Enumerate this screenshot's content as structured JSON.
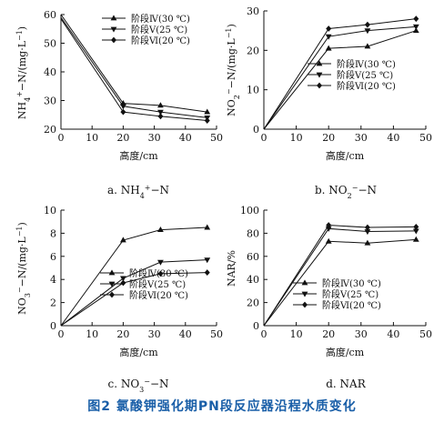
{
  "figure_caption": "图2  氯酸钾强化期PN段反应器沿程水质变化",
  "chart_data": [
    {
      "type": "line",
      "subplot_label": "a. NH4+−N",
      "xlabel": "高度/cm",
      "ylabel": "NH4+−N/(mg·L−1)",
      "xlim": [
        0,
        50
      ],
      "ylim": [
        20,
        60
      ],
      "xticks": [
        0,
        10,
        20,
        30,
        40,
        50
      ],
      "yticks": [
        20,
        30,
        40,
        50,
        60
      ],
      "legend_position": "top-right",
      "x": [
        0,
        20,
        32,
        47
      ],
      "series": [
        {
          "name": "阶段Ⅳ(30 ℃)",
          "marker": "triangle-up",
          "values": [
            60,
            29,
            28.3,
            26
          ]
        },
        {
          "name": "阶段Ⅴ(25 ℃)",
          "marker": "triangle-down",
          "values": [
            59,
            28,
            26,
            24
          ]
        },
        {
          "name": "阶段Ⅵ(20 ℃)",
          "marker": "diamond",
          "values": [
            58.5,
            26,
            24.5,
            23
          ]
        }
      ]
    },
    {
      "type": "line",
      "subplot_label": "b. NO2−−N",
      "xlabel": "高度/cm",
      "ylabel": "NO2−−N/(mg·L−1)",
      "xlim": [
        0,
        50
      ],
      "ylim": [
        0,
        30
      ],
      "xticks": [
        0,
        10,
        20,
        30,
        40,
        50
      ],
      "yticks": [
        0,
        10,
        20,
        30
      ],
      "legend_position": "bottom-right",
      "x": [
        0,
        20,
        32,
        47
      ],
      "series": [
        {
          "name": "阶段Ⅳ(30 ℃)",
          "marker": "triangle-up",
          "values": [
            0,
            20.5,
            21,
            25
          ]
        },
        {
          "name": "阶段Ⅴ(25 ℃)",
          "marker": "triangle-down",
          "values": [
            0,
            23.5,
            25,
            26
          ]
        },
        {
          "name": "阶段Ⅵ(20 ℃)",
          "marker": "diamond",
          "values": [
            0,
            25.5,
            26.5,
            28
          ]
        }
      ]
    },
    {
      "type": "line",
      "subplot_label": "c. NO3−−N",
      "xlabel": "高度/cm",
      "ylabel": "NO3−−N/(mg·L−1)",
      "xlim": [
        0,
        50
      ],
      "ylim": [
        0,
        10
      ],
      "xticks": [
        0,
        10,
        20,
        30,
        40,
        50
      ],
      "yticks": [
        0,
        2,
        4,
        6,
        8,
        10
      ],
      "legend_position": "bottom-right",
      "x": [
        0,
        20,
        32,
        47
      ],
      "series": [
        {
          "name": "阶段Ⅳ(30 ℃)",
          "marker": "triangle-up",
          "values": [
            0,
            7.4,
            8.3,
            8.5
          ]
        },
        {
          "name": "阶段Ⅴ(25 ℃)",
          "marker": "triangle-down",
          "values": [
            0,
            4.1,
            5.5,
            5.7
          ]
        },
        {
          "name": "阶段Ⅵ(20 ℃)",
          "marker": "diamond",
          "values": [
            0,
            3.7,
            4.5,
            4.6
          ]
        }
      ]
    },
    {
      "type": "line",
      "subplot_label": "d. NAR",
      "xlabel": "高度/cm",
      "ylabel": "NAR/%",
      "xlim": [
        0,
        50
      ],
      "ylim": [
        0,
        100
      ],
      "xticks": [
        0,
        10,
        20,
        30,
        40,
        50
      ],
      "yticks": [
        0,
        20,
        40,
        60,
        80,
        100
      ],
      "legend_position": "bottom-right",
      "x": [
        0,
        20,
        32,
        47
      ],
      "series": [
        {
          "name": "阶段Ⅳ(30 ℃)",
          "marker": "triangle-up",
          "values": [
            0,
            73,
            71.5,
            74.5
          ]
        },
        {
          "name": "阶段Ⅴ(25 ℃)",
          "marker": "triangle-down",
          "values": [
            0,
            84,
            81.5,
            82
          ]
        },
        {
          "name": "阶段Ⅵ(20 ℃)",
          "marker": "diamond",
          "values": [
            0,
            87,
            85,
            85.5
          ]
        }
      ]
    }
  ]
}
